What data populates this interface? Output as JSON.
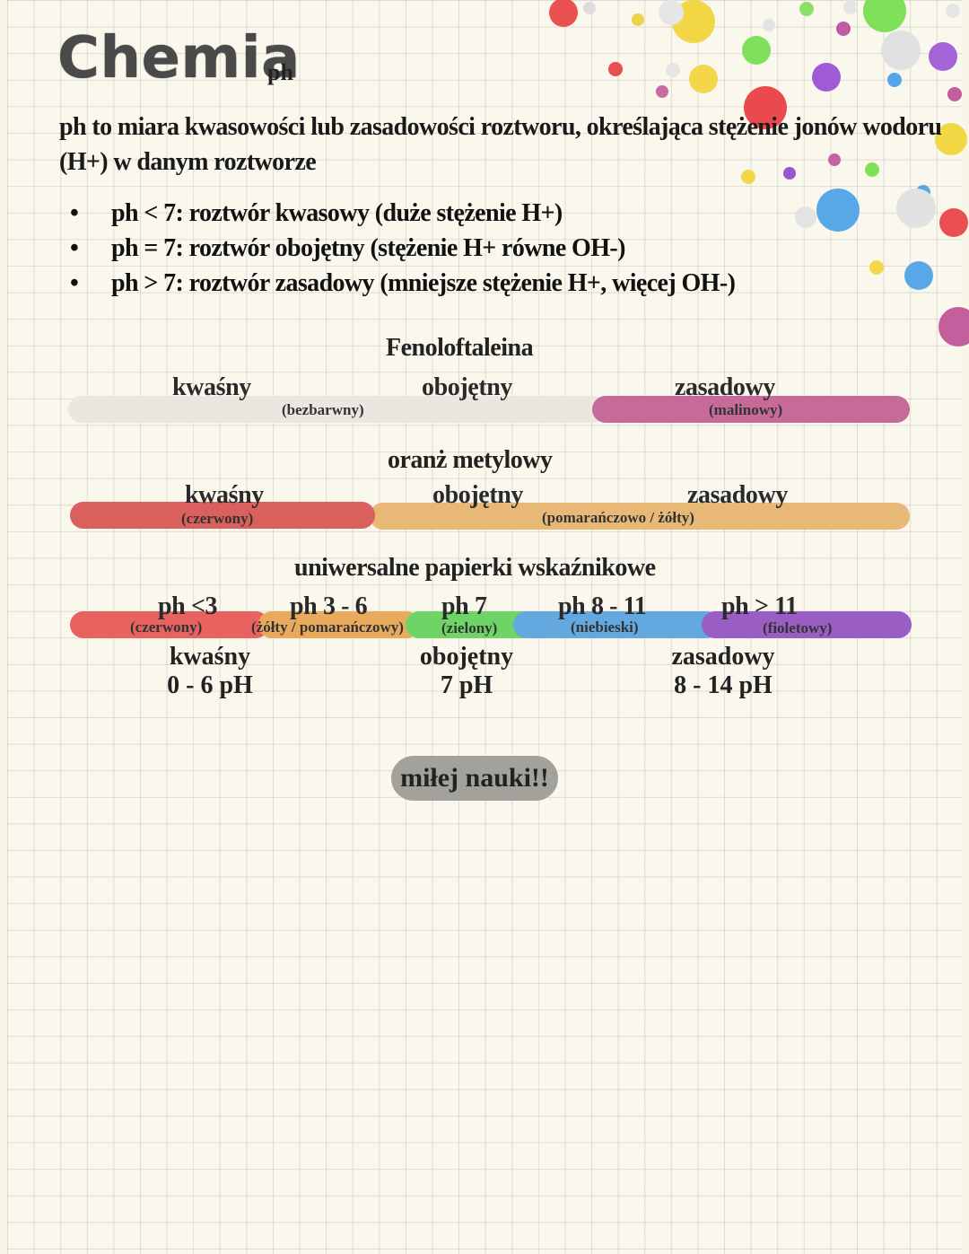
{
  "title": "Chemia",
  "title_sub": "ph",
  "intro": "ph to miara kwasowości lub zasadowości roztworu, określająca stężenie jonów wodoru (H+) w danym roztworze",
  "bullet_glyph": "•",
  "bullets": [
    "ph < 7: roztwór kwasowy (duże stężenie H+)",
    "ph = 7: roztwór obojętny (stężenie H+ równe OH-)",
    "ph > 7: roztwór zasadowy (mniejsze stężenie H+, więcej OH-)"
  ],
  "fenol": {
    "heading": "Fenoloftaleina",
    "acid": "kwaśny",
    "acid_color": "(bezbarwny)",
    "neutral": "obojętny",
    "base": "zasadowy",
    "base_color": "(malinowy)",
    "colors": {
      "colorless": "#e9e7df",
      "crimson": "#c66a9a"
    }
  },
  "oranz": {
    "heading": "oranż metylowy",
    "acid": "kwaśny",
    "acid_color": "(czerwony)",
    "neutral": "obojętny",
    "base": "zasadowy",
    "base_color": "(pomarańczowo / żółty)",
    "colors": {
      "red": "#d9605c",
      "orange": "#e8b877"
    }
  },
  "uni": {
    "heading": "uniwersalne papierki wskaźnikowe",
    "segments": [
      {
        "ph": "ph <3",
        "color_name": "(czerwony)",
        "color": "#e8635f"
      },
      {
        "ph": "ph 3 - 6",
        "color_name": "(żółty / pomarańczowy)",
        "color": "#eaaa5e"
      },
      {
        "ph": "ph 7",
        "color_name": "(zielony)",
        "color": "#6fd466"
      },
      {
        "ph": "ph 8 - 11",
        "color_name": "(niebieski)",
        "color": "#64a8e0"
      },
      {
        "ph": "ph > 11",
        "color_name": "(fioletowy)",
        "color": "#9a5dc4"
      }
    ],
    "ranges": [
      {
        "name": "kwaśny",
        "range": "0 - 6 pH"
      },
      {
        "name": "obojętny",
        "range": "7 pH"
      },
      {
        "name": "zasadowy",
        "range": "8 - 14 pH"
      }
    ]
  },
  "footer": "miłej nauki!!"
}
